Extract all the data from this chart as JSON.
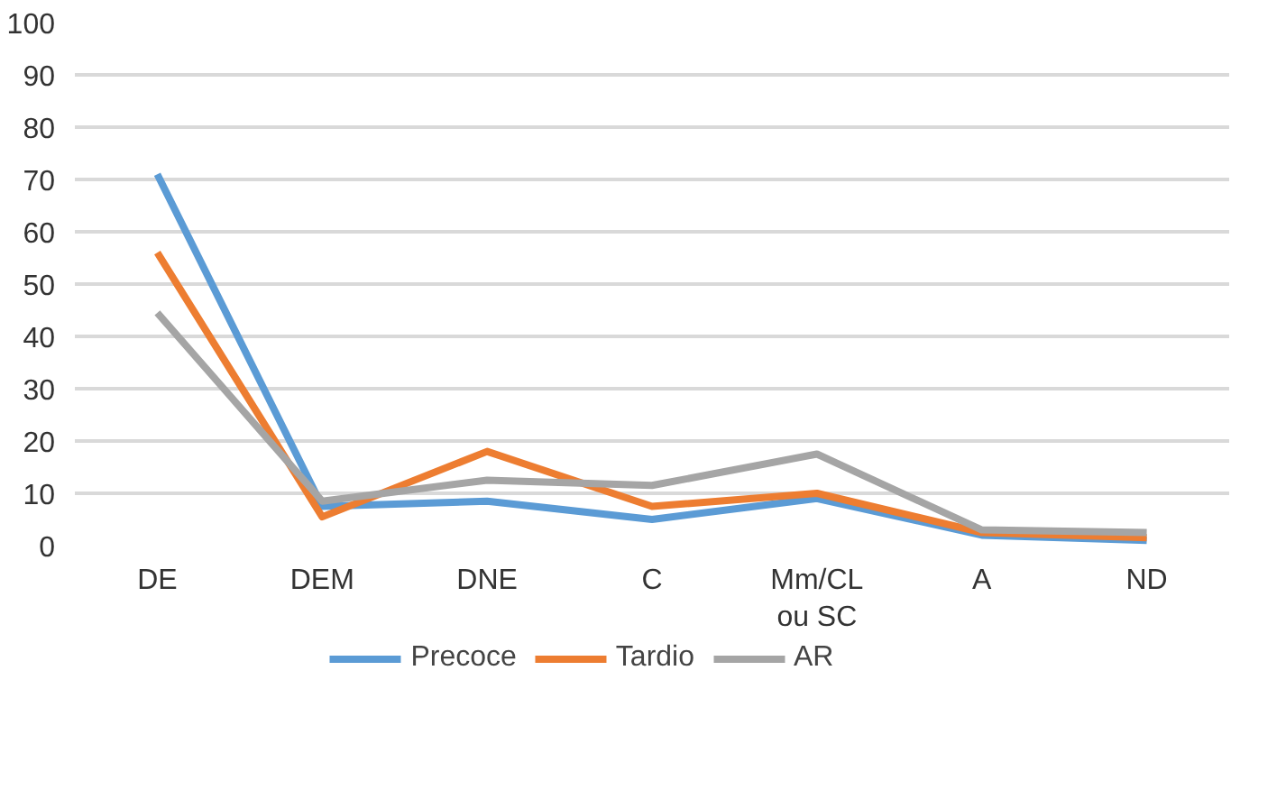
{
  "chart_data": {
    "type": "line",
    "categories": [
      "DE",
      "DEM",
      "DNE",
      "C",
      "Mm/CL\nou SC",
      "A",
      "ND"
    ],
    "series": [
      {
        "name": "Precoce",
        "color": "#5b9bd5",
        "values": [
          71,
          7.5,
          8.5,
          5,
          9,
          2,
          1
        ]
      },
      {
        "name": "Tardio",
        "color": "#ed7d31",
        "values": [
          56,
          5.5,
          18,
          7.5,
          10,
          2.5,
          1.5
        ]
      },
      {
        "name": "AR",
        "color": "#a5a5a5",
        "values": [
          44.5,
          8.5,
          12.5,
          11.5,
          17.5,
          3,
          2.5
        ]
      }
    ],
    "ylim": [
      0,
      100
    ],
    "yticks": [
      0,
      10,
      20,
      30,
      40,
      50,
      60,
      70,
      80,
      90,
      100
    ],
    "grid": "y",
    "legend": "bottom",
    "marker": "none",
    "line_style": "solid"
  }
}
